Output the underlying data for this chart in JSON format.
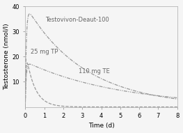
{
  "title": "",
  "xlabel": "Time (d)",
  "ylabel": "Testosterone (nmol/l)",
  "xlim": [
    0,
    8
  ],
  "ylim": [
    0,
    40
  ],
  "yticks": [
    10,
    20,
    30,
    40
  ],
  "xticks": [
    0,
    1,
    2,
    3,
    4,
    5,
    6,
    7,
    8
  ],
  "labels": {
    "testovivon": "Testovivon-Deaut-100",
    "tp": "25 mg TP",
    "te": "110 mg TE"
  },
  "label_positions": {
    "testovivon": [
      1.05,
      33.5
    ],
    "tp": [
      0.3,
      20.5
    ],
    "te": [
      2.8,
      13.0
    ]
  },
  "curve_color": "#999999",
  "background": "#f5f5f5",
  "fontsize": 6.5,
  "pk_testovivon": {
    "ka": 18.0,
    "ke": 0.32,
    "peak": 37.0
  },
  "pk_tp": {
    "ka": 30.0,
    "ke": 2.2,
    "peak": 17.5
  },
  "pk_te": {
    "ka": 20.0,
    "ke": 0.2,
    "peak": 17.0
  }
}
